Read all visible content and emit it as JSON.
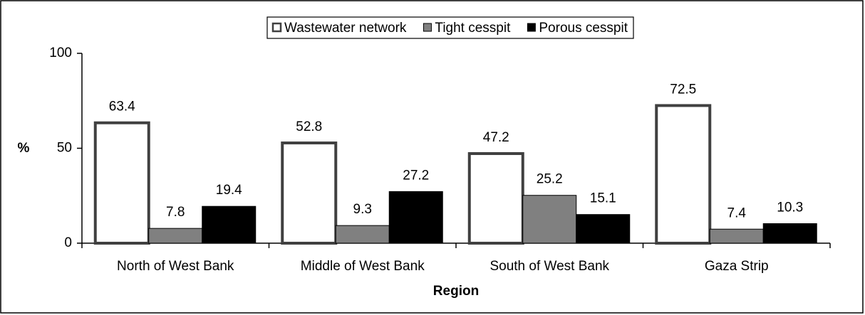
{
  "chart_data": {
    "type": "bar",
    "categories": [
      "North of West Bank",
      "Middle of West Bank",
      "South of West Bank",
      "Gaza Strip"
    ],
    "series": [
      {
        "name": "Wastewater network",
        "color": "#ffffff",
        "values": [
          63.4,
          52.8,
          47.2,
          72.5
        ]
      },
      {
        "name": "Tight cesspit",
        "color": "#808080",
        "values": [
          7.8,
          9.3,
          25.2,
          7.4
        ]
      },
      {
        "name": "Porous cesspit",
        "color": "#000000",
        "values": [
          19.4,
          27.2,
          15.1,
          10.3
        ]
      }
    ],
    "y_label": "%",
    "x_label": "Region",
    "ylim": [
      0,
      100
    ],
    "yticks": [
      0,
      50,
      100
    ],
    "legend": "top"
  }
}
